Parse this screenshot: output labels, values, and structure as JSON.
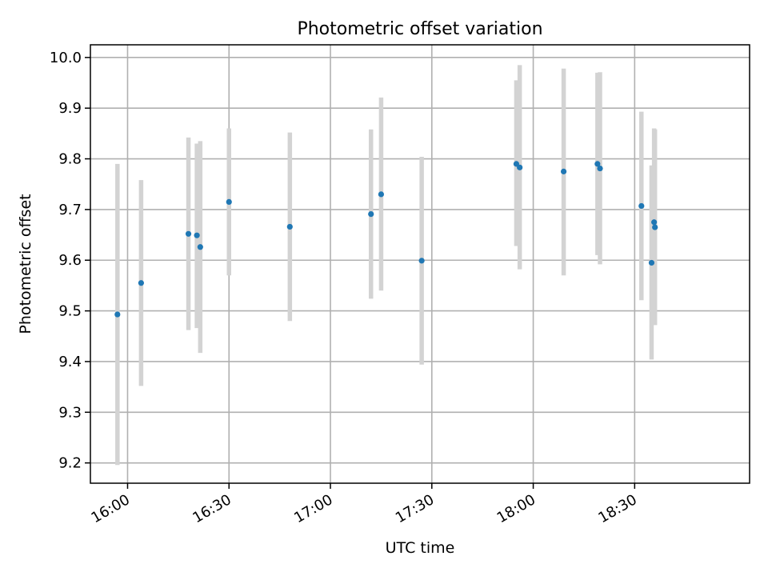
{
  "chart_data": {
    "type": "scatter",
    "title": "Photometric offset variation",
    "xlabel": "UTC time",
    "ylabel": "Photometric offset",
    "xlim": [
      "15:49",
      "19:04"
    ],
    "ylim": [
      9.16,
      10.025
    ],
    "x_ticks": [
      "16:00",
      "16:30",
      "17:00",
      "17:30",
      "18:00",
      "18:30"
    ],
    "y_ticks": [
      "9.2",
      "9.3",
      "9.4",
      "9.5",
      "9.6",
      "9.7",
      "9.8",
      "9.9",
      "10.0"
    ],
    "grid": true,
    "legend": "none",
    "colors": {
      "points": "#1f77b4",
      "errorbars": "#d3d3d3",
      "grid": "#b0b0b0"
    },
    "points": [
      {
        "x": "15:57",
        "y": 9.493,
        "ylow": 9.196,
        "yhigh": 9.79
      },
      {
        "x": "16:04",
        "y": 9.555,
        "ylow": 9.352,
        "yhigh": 9.758
      },
      {
        "x": "16:18",
        "y": 9.652,
        "ylow": 9.462,
        "yhigh": 9.842
      },
      {
        "x": "16:20:30",
        "y": 9.649,
        "ylow": 9.466,
        "yhigh": 9.83
      },
      {
        "x": "16:21:30",
        "y": 9.626,
        "ylow": 9.417,
        "yhigh": 9.835
      },
      {
        "x": "16:30",
        "y": 9.715,
        "ylow": 9.57,
        "yhigh": 9.86
      },
      {
        "x": "16:48",
        "y": 9.666,
        "ylow": 9.48,
        "yhigh": 9.852
      },
      {
        "x": "17:12",
        "y": 9.691,
        "ylow": 9.524,
        "yhigh": 9.858
      },
      {
        "x": "17:15",
        "y": 9.73,
        "ylow": 9.54,
        "yhigh": 9.921
      },
      {
        "x": "17:27",
        "y": 9.599,
        "ylow": 9.394,
        "yhigh": 9.804
      },
      {
        "x": "17:55",
        "y": 9.79,
        "ylow": 9.628,
        "yhigh": 9.955
      },
      {
        "x": "17:56",
        "y": 9.783,
        "ylow": 9.582,
        "yhigh": 9.985
      },
      {
        "x": "18:09",
        "y": 9.775,
        "ylow": 9.57,
        "yhigh": 9.978
      },
      {
        "x": "18:19",
        "y": 9.79,
        "ylow": 9.61,
        "yhigh": 9.97
      },
      {
        "x": "18:19:45",
        "y": 9.781,
        "ylow": 9.592,
        "yhigh": 9.971
      },
      {
        "x": "18:32",
        "y": 9.707,
        "ylow": 9.521,
        "yhigh": 9.893
      },
      {
        "x": "18:35",
        "y": 9.595,
        "ylow": 9.404,
        "yhigh": 9.787
      },
      {
        "x": "18:35:45",
        "y": 9.675,
        "ylow": 9.49,
        "yhigh": 9.86
      },
      {
        "x": "18:36",
        "y": 9.665,
        "ylow": 9.472,
        "yhigh": 9.858
      }
    ]
  }
}
